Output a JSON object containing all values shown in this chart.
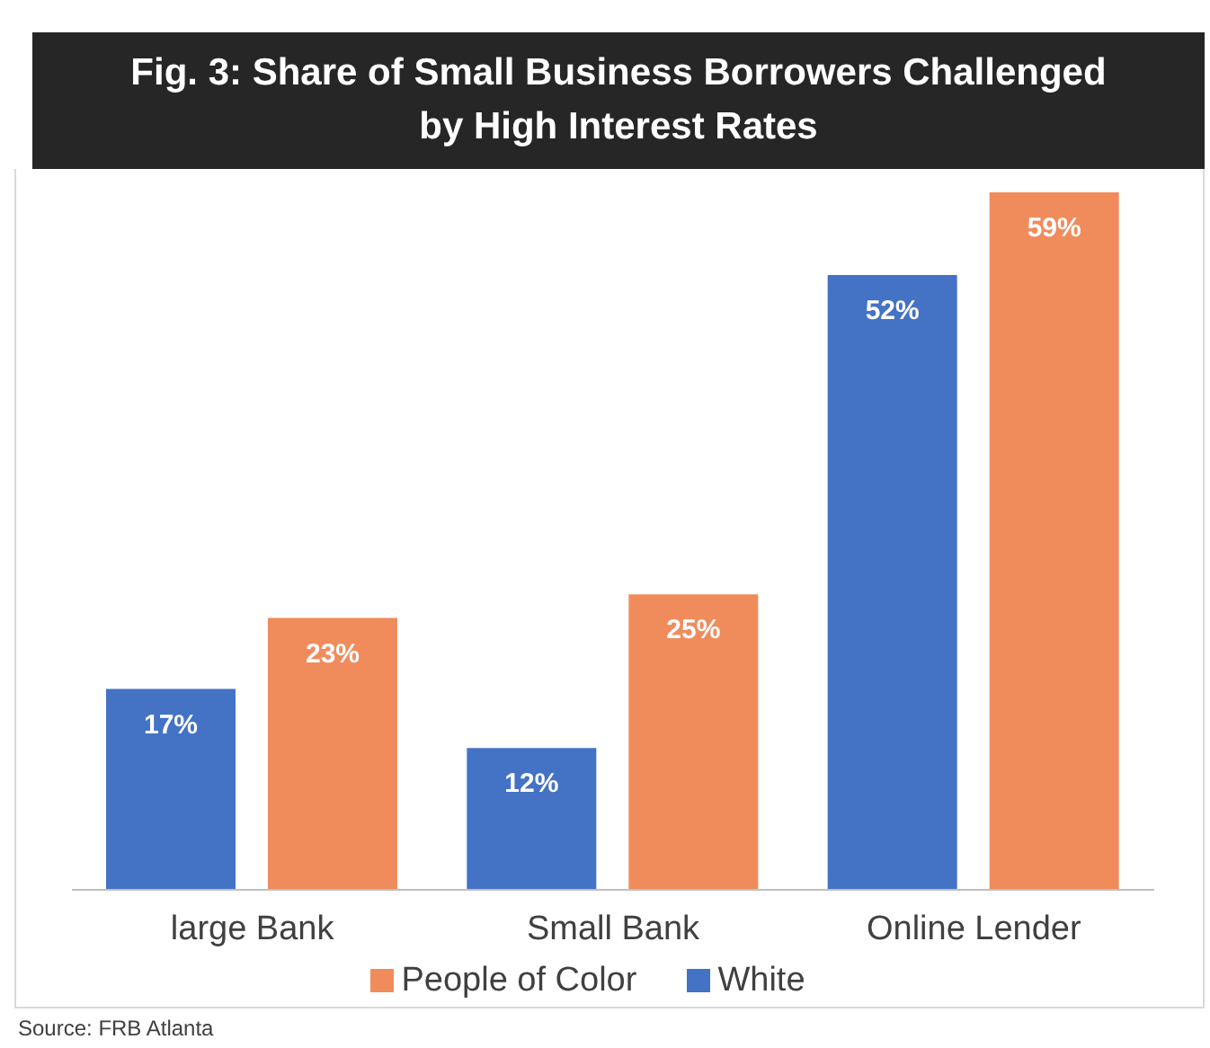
{
  "chart_data": {
    "type": "bar",
    "title": "Fig. 3: Share of Small Business Borrowers Challenged by High Interest Rates",
    "categories": [
      "large Bank",
      "Small Bank",
      "Online Lender"
    ],
    "series": [
      {
        "name": "White",
        "color": "#4472c4",
        "values": [
          17,
          12,
          52
        ],
        "value_labels": [
          "17%",
          "12%",
          "52%"
        ]
      },
      {
        "name": "People of Color",
        "color": "#f08c5c",
        "values": [
          23,
          25,
          59
        ],
        "value_labels": [
          "23%",
          "25%",
          "59%"
        ]
      }
    ],
    "legend": "bottom",
    "annotations": [
      "Source: FRB Atlanta"
    ]
  }
}
